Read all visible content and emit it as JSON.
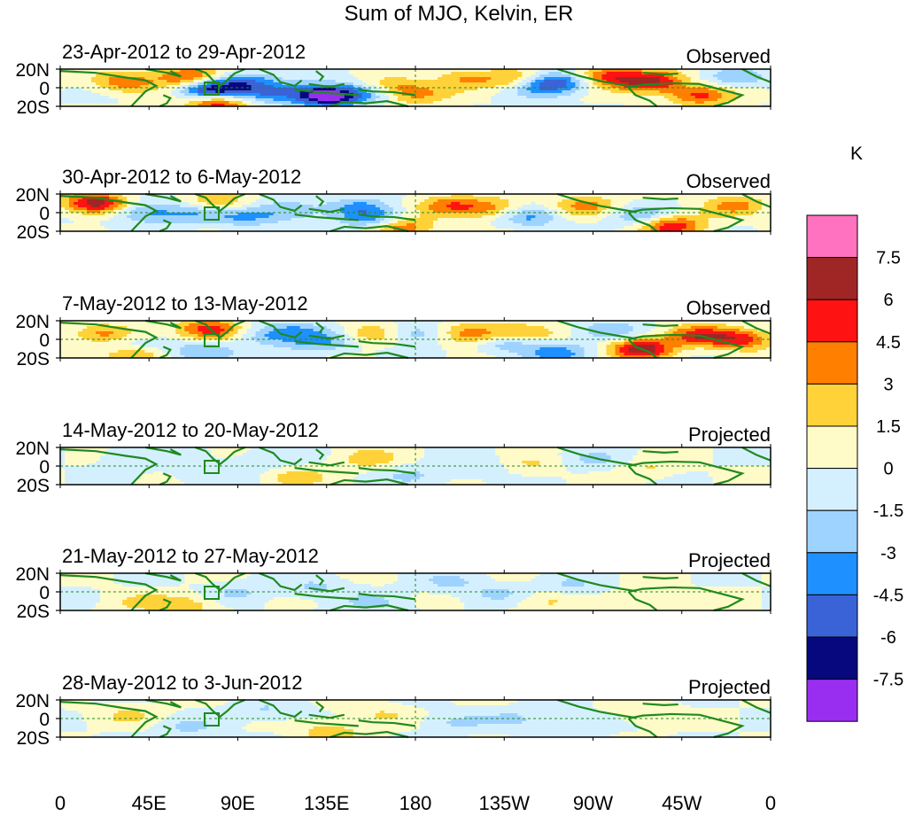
{
  "title": "Sum of MJO, Kelvin, ER",
  "lat_labels": [
    "20N",
    "0",
    "20S"
  ],
  "lon_labels": [
    "0",
    "45E",
    "90E",
    "135E",
    "180",
    "135W",
    "90W",
    "45W",
    "0"
  ],
  "panels": [
    {
      "date_range": "23-Apr-2012 to 29-Apr-2012",
      "status": "Observed",
      "amp": 1.0,
      "blobs": [
        [
          0.09,
          0.35,
          4
        ],
        [
          0.18,
          0.2,
          5.5
        ],
        [
          0.22,
          0.8,
          -3
        ],
        [
          0.21,
          0.55,
          -6.5
        ],
        [
          0.22,
          0.9,
          8
        ],
        [
          0.26,
          0.35,
          -4
        ],
        [
          0.3,
          0.65,
          -3.5
        ],
        [
          0.36,
          0.62,
          -3
        ],
        [
          0.38,
          0.75,
          -7
        ],
        [
          0.44,
          0.6,
          -4
        ],
        [
          0.46,
          0.5,
          4.5
        ],
        [
          0.5,
          0.7,
          3
        ],
        [
          0.57,
          0.25,
          3
        ],
        [
          0.64,
          0.3,
          3
        ],
        [
          0.67,
          0.5,
          -2.5
        ],
        [
          0.7,
          0.35,
          -5
        ],
        [
          0.77,
          0.18,
          5
        ],
        [
          0.83,
          0.35,
          6.5
        ],
        [
          0.9,
          0.7,
          5
        ],
        [
          0.95,
          0.25,
          -2.5
        ]
      ]
    },
    {
      "date_range": "30-Apr-2012 to 6-May-2012",
      "status": "Observed",
      "amp": 1.0,
      "blobs": [
        [
          0.05,
          0.25,
          7
        ],
        [
          0.12,
          0.5,
          -3.5
        ],
        [
          0.19,
          0.5,
          -3
        ],
        [
          0.22,
          0.25,
          3.5
        ],
        [
          0.26,
          0.6,
          -3
        ],
        [
          0.32,
          0.45,
          -3
        ],
        [
          0.42,
          0.35,
          -3
        ],
        [
          0.44,
          0.7,
          -3.5
        ],
        [
          0.48,
          0.9,
          4.5
        ],
        [
          0.55,
          0.3,
          4
        ],
        [
          0.61,
          0.4,
          3.5
        ],
        [
          0.66,
          0.6,
          -3.5
        ],
        [
          0.74,
          0.3,
          3.5
        ],
        [
          0.82,
          0.6,
          -3
        ],
        [
          0.86,
          0.85,
          6
        ],
        [
          0.95,
          0.3,
          3.5
        ]
      ]
    },
    {
      "date_range": "7-May-2012 to 13-May-2012",
      "status": "Observed",
      "amp": 1.0,
      "blobs": [
        [
          0.06,
          0.35,
          3
        ],
        [
          0.1,
          0.7,
          -2.5
        ],
        [
          0.1,
          0.9,
          4.5
        ],
        [
          0.2,
          0.85,
          -3.5
        ],
        [
          0.21,
          0.25,
          6
        ],
        [
          0.29,
          0.4,
          -2.5
        ],
        [
          0.33,
          0.3,
          -3
        ],
        [
          0.37,
          0.6,
          -3
        ],
        [
          0.44,
          0.35,
          3
        ],
        [
          0.5,
          0.35,
          -3
        ],
        [
          0.58,
          0.35,
          4.5
        ],
        [
          0.63,
          0.6,
          -3
        ],
        [
          0.65,
          0.35,
          3
        ],
        [
          0.7,
          0.85,
          -3.5
        ],
        [
          0.77,
          0.25,
          -2.5
        ],
        [
          0.82,
          0.75,
          7
        ],
        [
          0.9,
          0.4,
          5
        ],
        [
          0.96,
          0.5,
          5
        ]
      ]
    },
    {
      "date_range": "14-May-2012 to 20-May-2012",
      "status": "Projected",
      "amp": 1.0,
      "blobs": [
        [
          0.1,
          0.3,
          -1.5
        ],
        [
          0.2,
          0.7,
          -1.5
        ],
        [
          0.29,
          0.35,
          -1.6
        ],
        [
          0.33,
          0.8,
          2.2
        ],
        [
          0.43,
          0.3,
          2.2
        ],
        [
          0.5,
          0.75,
          -1.6
        ],
        [
          0.59,
          0.55,
          -1.6
        ],
        [
          0.66,
          0.5,
          1.6
        ],
        [
          0.75,
          0.35,
          -1.6
        ],
        [
          0.83,
          0.55,
          1.6
        ]
      ]
    },
    {
      "date_range": "21-May-2012 to 27-May-2012",
      "status": "Projected",
      "amp": 1.0,
      "blobs": [
        [
          0.11,
          0.8,
          1.6
        ],
        [
          0.18,
          0.85,
          2.2
        ],
        [
          0.25,
          0.5,
          -1.6
        ],
        [
          0.36,
          0.4,
          -1.7
        ],
        [
          0.44,
          0.8,
          -1.6
        ],
        [
          0.55,
          0.25,
          -1.6
        ],
        [
          0.62,
          0.55,
          -1.6
        ],
        [
          0.68,
          0.75,
          1.7
        ],
        [
          0.72,
          0.35,
          -1.6
        ],
        [
          0.83,
          0.7,
          1.7
        ]
      ]
    },
    {
      "date_range": "28-May-2012 to 3-Jun-2012",
      "status": "Projected",
      "amp": 1.0,
      "blobs": [
        [
          0.1,
          0.4,
          1.6
        ],
        [
          0.18,
          0.75,
          -1.6
        ],
        [
          0.29,
          0.3,
          -1.6
        ],
        [
          0.38,
          0.85,
          2.5
        ],
        [
          0.45,
          0.4,
          1.6
        ],
        [
          0.55,
          0.6,
          -1.6
        ],
        [
          0.64,
          0.5,
          -1.6
        ],
        [
          0.72,
          0.7,
          -1.6
        ],
        [
          0.83,
          0.4,
          1.6
        ]
      ]
    }
  ],
  "colorbar": {
    "unit": "K",
    "tick_labels": [
      "7.5",
      "6",
      "4.5",
      "3",
      "1.5",
      "0",
      "-1.5",
      "-3",
      "-4.5",
      "-6",
      "-7.5"
    ],
    "thresholds": [
      -7.5,
      -6,
      -4.5,
      -3,
      -1.5,
      0,
      1.5,
      3,
      4.5,
      6,
      7.5
    ],
    "colors": [
      "#9a2ef0",
      "#08087e",
      "#3a63d8",
      "#1e90ff",
      "#9fd3ff",
      "#d4f0ff",
      "#fffbc8",
      "#ffd23a",
      "#ff7f00",
      "#ff1212",
      "#a02626",
      "#ff72bf"
    ]
  },
  "style": {
    "coast": "#1f8a1f",
    "frame": "#000000"
  }
}
